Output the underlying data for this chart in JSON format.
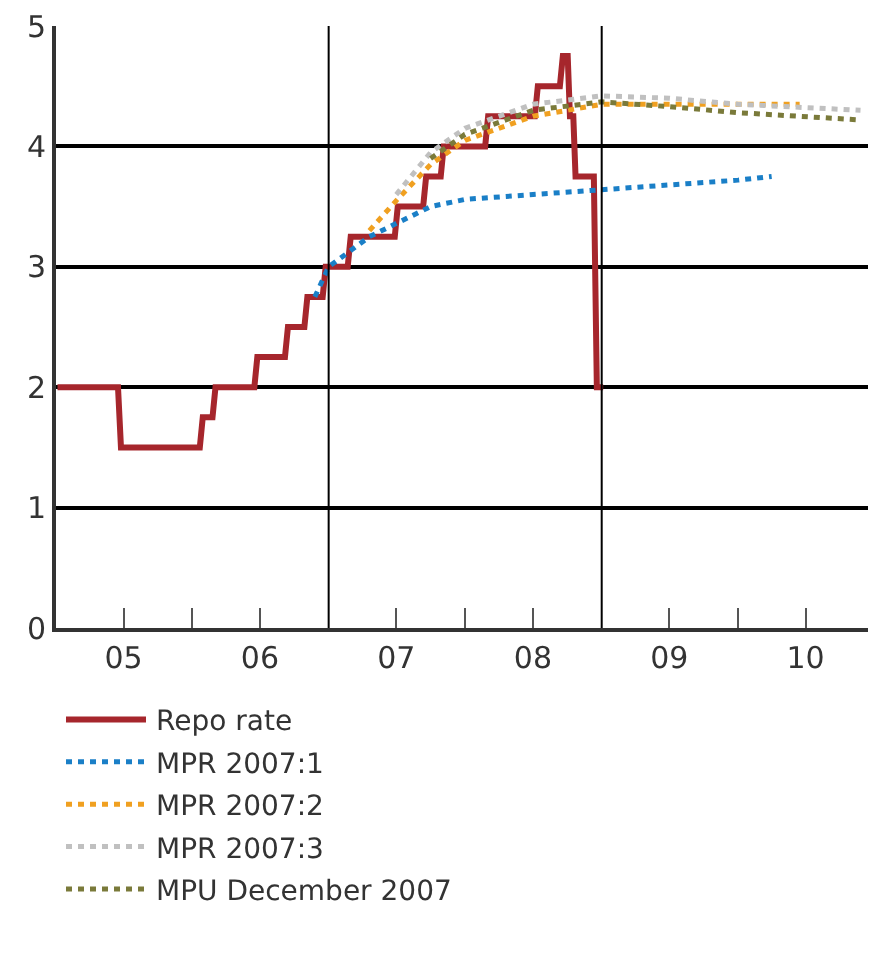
{
  "chart_data": {
    "type": "line",
    "xlim": [
      "2005-01-01",
      "2010-12-15"
    ],
    "ylim": [
      0,
      5
    ],
    "yticks": [
      0,
      1,
      2,
      3,
      4,
      5
    ],
    "xticks": [
      {
        "value": "2005-07-01",
        "label": "05"
      },
      {
        "value": "2006-01-01",
        "label": null
      },
      {
        "value": "2006-07-01",
        "label": "06"
      },
      {
        "value": "2007-07-01",
        "label": "07"
      },
      {
        "value": "2008-01-01",
        "label": null
      },
      {
        "value": "2008-07-01",
        "label": "08"
      },
      {
        "value": "2009-07-01",
        "label": "09"
      },
      {
        "value": "2010-01-01",
        "label": null
      },
      {
        "value": "2010-07-01",
        "label": "10"
      }
    ],
    "grid": "y",
    "legend": "bottom",
    "ref_lines": [
      {
        "axis": "x",
        "value": "2007-01-01",
        "color": "#000000"
      },
      {
        "axis": "x",
        "value": "2009-01-01",
        "color": "#000000"
      }
    ],
    "series": [
      {
        "name": "Repo rate",
        "color": "#a6262c",
        "line_style": "solid",
        "x": [
          "2005-01-05",
          "2005-06-16",
          "2005-06-24",
          "2006-01-21",
          "2006-01-29",
          "2006-02-24",
          "2006-03-04",
          "2006-06-16",
          "2006-06-24",
          "2006-09-06",
          "2006-09-14",
          "2006-10-28",
          "2006-11-05",
          "2006-12-16",
          "2006-12-24",
          "2007-02-21",
          "2007-03-01",
          "2007-06-27",
          "2007-07-05",
          "2007-09-11",
          "2007-09-19",
          "2007-10-28",
          "2007-11-05",
          "2008-02-24",
          "2008-03-03",
          "2008-07-06",
          "2008-07-14",
          "2008-09-11",
          "2008-09-19",
          "2008-10-02",
          "2008-10-08",
          "2008-10-17",
          "2008-10-23",
          "2008-12-11",
          "2008-12-19",
          "2009-01-05"
        ],
        "values": [
          2.0,
          2.0,
          1.5,
          1.5,
          1.75,
          1.75,
          2.0,
          2.0,
          2.25,
          2.25,
          2.5,
          2.5,
          2.75,
          2.75,
          3.0,
          3.0,
          3.25,
          3.25,
          3.5,
          3.5,
          3.75,
          3.75,
          4.0,
          4.0,
          4.25,
          4.25,
          4.5,
          4.5,
          4.75,
          4.75,
          4.25,
          4.25,
          3.75,
          3.75,
          2.0,
          2.0
        ]
      },
      {
        "name": "MPR 2007:1",
        "color": "#1a7fc7",
        "line_style": "dotted",
        "x": [
          "2006-11-25",
          "2007-01-01",
          "2007-04-20",
          "2007-10-01",
          "2008-01-01",
          "2008-07-01",
          "2009-01-01",
          "2009-07-01",
          "2010-01-01",
          "2010-04-01"
        ],
        "values": [
          2.75,
          3.0,
          3.25,
          3.5,
          3.56,
          3.6,
          3.64,
          3.68,
          3.72,
          3.75
        ]
      },
      {
        "name": "MPR 2007:2",
        "color": "#f0a020",
        "line_style": "dotted",
        "x": [
          "2007-04-20",
          "2007-07-01",
          "2007-10-01",
          "2008-01-01",
          "2008-07-01",
          "2009-01-01",
          "2009-07-01",
          "2010-01-01",
          "2010-06-15"
        ],
        "values": [
          3.3,
          3.55,
          3.85,
          4.05,
          4.25,
          4.35,
          4.35,
          4.35,
          4.35
        ]
      },
      {
        "name": "MPR 2007:3",
        "color": "#c0c0c0",
        "line_style": "dotted",
        "x": [
          "2007-07-01",
          "2007-10-01",
          "2008-01-01",
          "2008-07-01",
          "2009-01-01",
          "2009-07-01",
          "2010-01-01",
          "2010-11-25"
        ],
        "values": [
          3.6,
          3.95,
          4.15,
          4.35,
          4.42,
          4.4,
          4.35,
          4.3
        ]
      },
      {
        "name": "MPU December 2007",
        "color": "#7a7a3a",
        "line_style": "dotted",
        "x": [
          "2007-10-01",
          "2008-01-01",
          "2008-07-01",
          "2009-01-01",
          "2009-07-01",
          "2010-01-01",
          "2010-11-25"
        ],
        "values": [
          3.9,
          4.1,
          4.3,
          4.37,
          4.33,
          4.28,
          4.22
        ]
      }
    ]
  }
}
